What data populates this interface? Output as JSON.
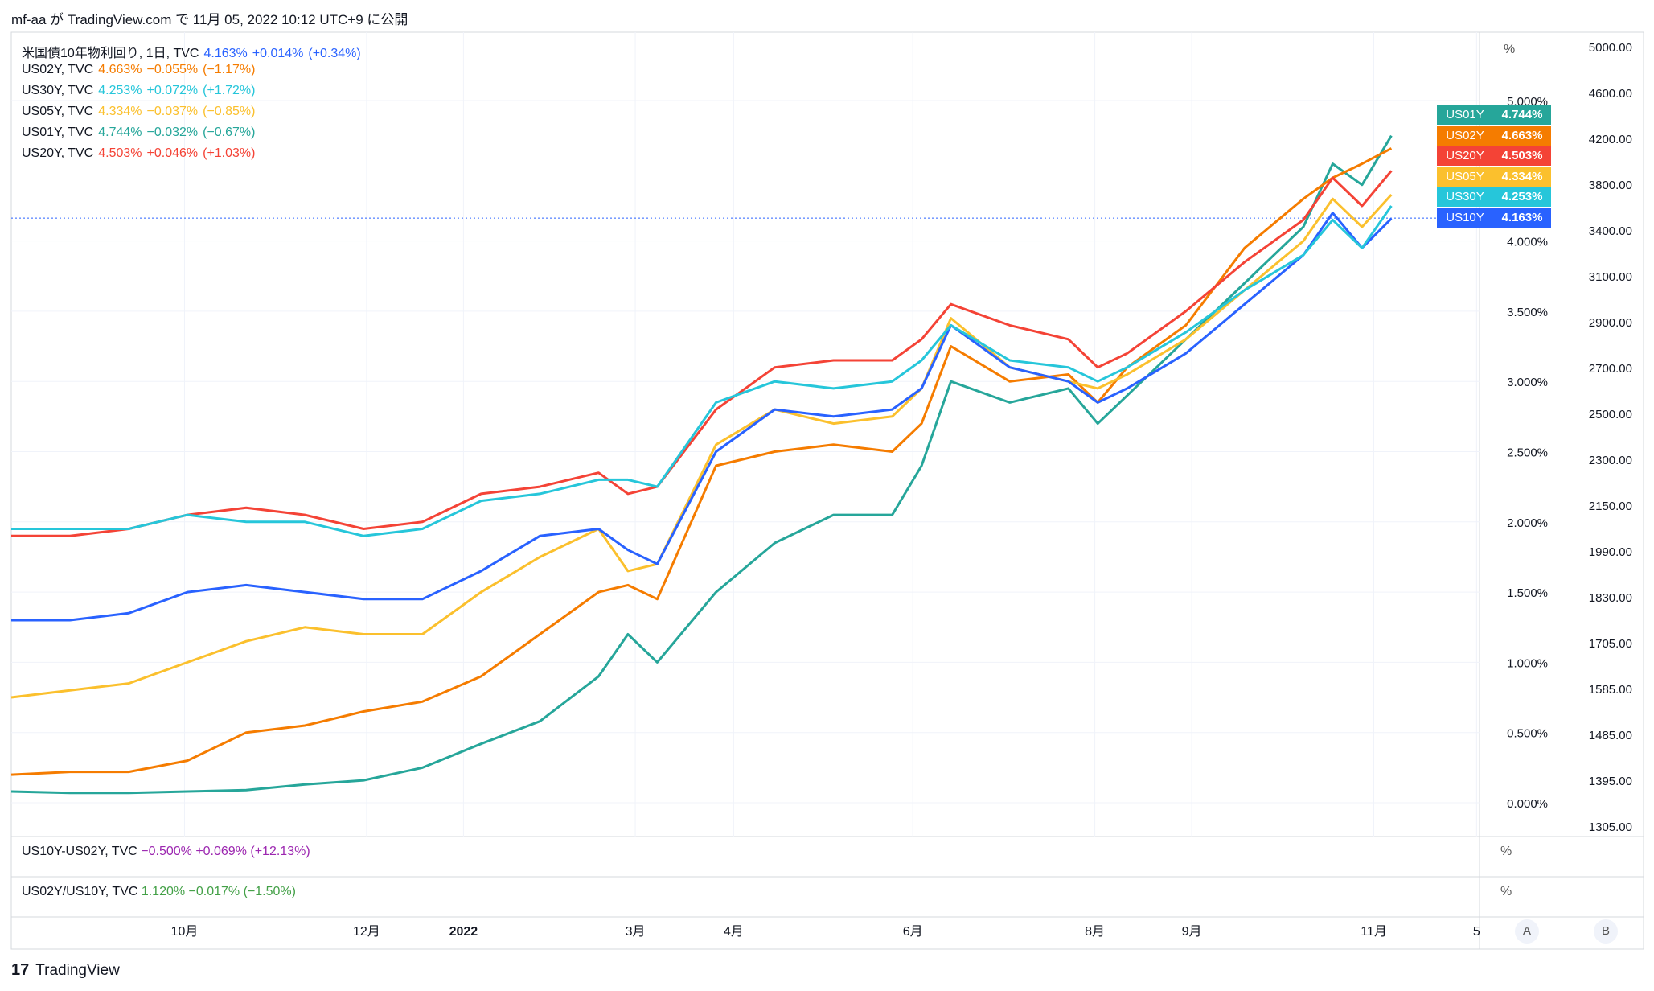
{
  "header": {
    "text": "mf-aa が TradingView.com で 11月 05, 2022 10:12 UTC+9 に公開"
  },
  "legend": [
    {
      "label": "米国債10年物利回り, 1日, TVC",
      "value": "4.163%",
      "change": "+0.014%",
      "pct": "(+0.34%)",
      "color": "#2962ff"
    },
    {
      "label": "US02Y, TVC",
      "value": "4.663%",
      "change": "−0.055%",
      "pct": "(−1.17%)",
      "color": "#f57c00"
    },
    {
      "label": "US30Y, TVC",
      "value": "4.253%",
      "change": "+0.072%",
      "pct": "(+1.72%)",
      "color": "#26c6da"
    },
    {
      "label": "US05Y, TVC",
      "value": "4.334%",
      "change": "−0.037%",
      "pct": "(−0.85%)",
      "color": "#fbc02d"
    },
    {
      "label": "US01Y, TVC",
      "value": "4.744%",
      "change": "−0.032%",
      "pct": "(−0.67%)",
      "color": "#26a69a"
    },
    {
      "label": "US20Y, TVC",
      "value": "4.503%",
      "change": "+0.046%",
      "pct": "(+1.03%)",
      "color": "#f44336"
    }
  ],
  "pane2": {
    "label": "US10Y-US02Y, TVC",
    "value": "−0.500%",
    "change": "+0.069%",
    "pct": "(+12.13%)",
    "color": "#9c27b0",
    "unit": "%"
  },
  "pane3": {
    "label": "US02Y/US10Y, TVC",
    "value": "1.120%",
    "change": "−0.017%",
    "pct": "(−1.50%)",
    "color": "#43a047",
    "unit": "%"
  },
  "tags": [
    {
      "name": "US01Y",
      "value": "4.744%",
      "color": "#26a69a"
    },
    {
      "name": "US02Y",
      "value": "4.663%",
      "color": "#f57c00"
    },
    {
      "name": "US20Y",
      "value": "4.503%",
      "color": "#f44336"
    },
    {
      "name": "US05Y",
      "value": "4.334%",
      "color": "#fbc02d"
    },
    {
      "name": "US30Y",
      "value": "4.253%",
      "color": "#26c6da"
    },
    {
      "name": "US10Y",
      "value": "4.163%",
      "color": "#2962ff"
    }
  ],
  "axis_buttons": [
    "A",
    "B"
  ],
  "footer": {
    "brand": "TradingView"
  },
  "chart_data": {
    "type": "line",
    "unit_label": "%",
    "y_pct_ticks": [
      "5.000%",
      "4.000%",
      "3.500%",
      "3.000%",
      "2.500%",
      "2.000%",
      "1.500%",
      "1.000%",
      "0.500%",
      "0.000%"
    ],
    "y_pct_values": [
      5.0,
      4.0,
      3.5,
      3.0,
      2.5,
      2.0,
      1.5,
      1.0,
      0.5,
      0.0
    ],
    "y_idx_ticks": [
      "5000.00",
      "4600.00",
      "4200.00",
      "3800.00",
      "3400.00",
      "3100.00",
      "2900.00",
      "2700.00",
      "2500.00",
      "2300.00",
      "2150.00",
      "1990.00",
      "1830.00",
      "1705.00",
      "1585.00",
      "1485.00",
      "1395.00",
      "1305.00"
    ],
    "x_ticks": [
      {
        "label": "10月",
        "x": 0.118,
        "bold": false
      },
      {
        "label": "12月",
        "x": 0.242,
        "bold": false
      },
      {
        "label": "2022",
        "x": 0.308,
        "bold": true
      },
      {
        "label": "3月",
        "x": 0.425,
        "bold": false
      },
      {
        "label": "4月",
        "x": 0.492,
        "bold": false
      },
      {
        "label": "6月",
        "x": 0.614,
        "bold": false
      },
      {
        "label": "8月",
        "x": 0.738,
        "bold": false
      },
      {
        "label": "9月",
        "x": 0.804,
        "bold": false
      },
      {
        "label": "11月",
        "x": 0.928,
        "bold": false
      },
      {
        "label": "5",
        "x": 0.998,
        "bold": false
      }
    ],
    "x": [
      0,
      0.04,
      0.08,
      0.12,
      0.16,
      0.2,
      0.24,
      0.28,
      0.32,
      0.36,
      0.4,
      0.42,
      0.44,
      0.48,
      0.52,
      0.56,
      0.6,
      0.62,
      0.64,
      0.68,
      0.72,
      0.74,
      0.76,
      0.8,
      0.84,
      0.88,
      0.9,
      0.92,
      0.94
    ],
    "series": [
      {
        "name": "US01Y",
        "color": "#26a69a",
        "values": [
          0.08,
          0.07,
          0.07,
          0.08,
          0.09,
          0.13,
          0.16,
          0.25,
          0.42,
          0.58,
          0.9,
          1.2,
          1.0,
          1.5,
          1.85,
          2.05,
          2.05,
          2.4,
          3.0,
          2.85,
          2.95,
          2.7,
          2.9,
          3.3,
          3.7,
          4.1,
          4.55,
          4.4,
          4.75
        ]
      },
      {
        "name": "US02Y",
        "color": "#f57c00",
        "values": [
          0.2,
          0.22,
          0.22,
          0.3,
          0.5,
          0.55,
          0.65,
          0.72,
          0.9,
          1.2,
          1.5,
          1.55,
          1.45,
          2.4,
          2.5,
          2.55,
          2.5,
          2.7,
          3.25,
          3.0,
          3.05,
          2.85,
          3.1,
          3.4,
          3.95,
          4.3,
          4.45,
          4.55,
          4.66
        ]
      },
      {
        "name": "US05Y",
        "color": "#fbc02d",
        "values": [
          0.75,
          0.8,
          0.85,
          1.0,
          1.15,
          1.25,
          1.2,
          1.2,
          1.5,
          1.75,
          1.95,
          1.65,
          1.7,
          2.55,
          2.8,
          2.7,
          2.75,
          2.95,
          3.45,
          3.1,
          3.0,
          2.95,
          3.05,
          3.3,
          3.65,
          4.0,
          4.3,
          4.1,
          4.33
        ]
      },
      {
        "name": "US10Y",
        "color": "#2962ff",
        "values": [
          1.3,
          1.3,
          1.35,
          1.5,
          1.55,
          1.5,
          1.45,
          1.45,
          1.65,
          1.9,
          1.95,
          1.8,
          1.7,
          2.5,
          2.8,
          2.75,
          2.8,
          2.95,
          3.4,
          3.1,
          3.0,
          2.85,
          2.95,
          3.2,
          3.55,
          3.9,
          4.2,
          3.95,
          4.16
        ]
      },
      {
        "name": "US20Y",
        "color": "#f44336",
        "values": [
          1.9,
          1.9,
          1.95,
          2.05,
          2.1,
          2.05,
          1.95,
          2.0,
          2.2,
          2.25,
          2.35,
          2.2,
          2.25,
          2.8,
          3.1,
          3.15,
          3.15,
          3.3,
          3.55,
          3.4,
          3.3,
          3.1,
          3.2,
          3.5,
          3.85,
          4.15,
          4.45,
          4.25,
          4.5
        ]
      },
      {
        "name": "US30Y",
        "color": "#26c6da",
        "values": [
          1.95,
          1.95,
          1.95,
          2.05,
          2.0,
          2.0,
          1.9,
          1.95,
          2.15,
          2.2,
          2.3,
          2.3,
          2.25,
          2.85,
          3.0,
          2.95,
          3.0,
          3.15,
          3.4,
          3.15,
          3.1,
          3.0,
          3.1,
          3.35,
          3.65,
          3.9,
          4.15,
          3.95,
          4.25
        ]
      }
    ],
    "current_line": {
      "value": 4.163,
      "color": "#2962ff"
    }
  }
}
